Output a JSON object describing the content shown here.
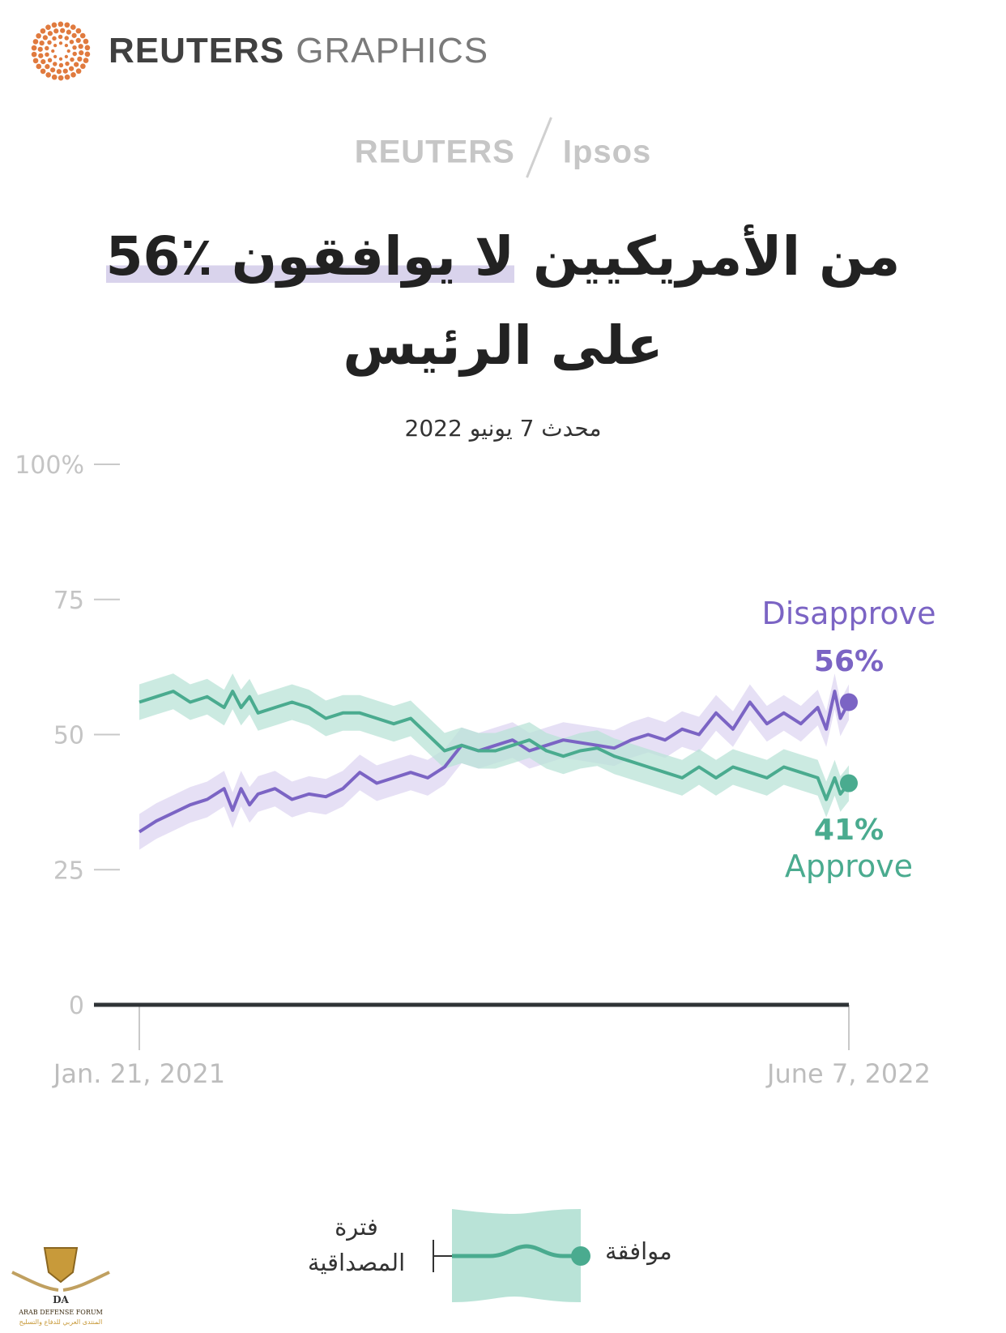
{
  "brand": {
    "name_bold": "REUTERS",
    "name_light": "GRAPHICS"
  },
  "partner": {
    "left": "REUTERS",
    "right": "Ipsos"
  },
  "header": {
    "title_line1_a": "من الأمريكيين ",
    "title_line1_highlight": "لا يوافقون ٪56",
    "title_line2": "على الرئيس",
    "subtitle": "محدث 7 يونيو 2022"
  },
  "colors": {
    "approve": "#4aab8f",
    "approve_band": "#b9e3d7",
    "disapprove": "#7b64c4",
    "disapprove_band": "#ddd6f1",
    "axis": "#2f3336",
    "tick": "#c9c9c9"
  },
  "legend": {
    "series_label": "موافقة",
    "band_label_1": "فترة",
    "band_label_2": "المصداقية"
  },
  "watermark": {
    "text_1": "ARAB DEFENSE FORUM",
    "text_2": "المنتدى العربي للدفاع والتسليح",
    "monogram": "DA"
  },
  "chart_data": {
    "type": "line",
    "ylim": [
      0,
      100
    ],
    "yticks": [
      0,
      25,
      50,
      75,
      100
    ],
    "ytick_labels": [
      "0",
      "25",
      "50",
      "75",
      "100%"
    ],
    "xticks": [
      0,
      502
    ],
    "xtick_labels": [
      "Jan. 21, 2021",
      "June 7, 2022"
    ],
    "x_start_label": "Jan. 21, 2021",
    "x_end_label": "June 7, 2022",
    "series": [
      {
        "name": "Disapprove",
        "end_label": "56%",
        "x": [
          0,
          12,
          24,
          36,
          48,
          60,
          66,
          72,
          78,
          84,
          96,
          108,
          120,
          132,
          144,
          156,
          168,
          180,
          192,
          204,
          216,
          228,
          240,
          252,
          264,
          276,
          288,
          300,
          312,
          324,
          336,
          348,
          360,
          372,
          384,
          396,
          408,
          420,
          432,
          444,
          456,
          468,
          480,
          486,
          492,
          496,
          502
        ],
        "values": [
          32,
          34,
          35.5,
          37,
          38,
          40,
          36,
          40,
          37,
          39,
          40,
          38,
          39,
          38.5,
          40,
          43,
          41,
          42,
          43,
          42,
          44,
          48,
          47,
          48,
          49,
          47,
          48,
          49,
          48.5,
          48,
          47.5,
          49,
          50,
          49,
          51,
          50,
          54,
          51,
          56,
          52,
          54,
          52,
          55,
          51,
          58,
          53,
          56
        ]
      },
      {
        "name": "Approve",
        "end_label": "41%",
        "x": [
          0,
          12,
          24,
          36,
          48,
          60,
          66,
          72,
          78,
          84,
          96,
          108,
          120,
          132,
          144,
          156,
          168,
          180,
          192,
          204,
          216,
          228,
          240,
          252,
          264,
          276,
          288,
          300,
          312,
          324,
          336,
          348,
          360,
          372,
          384,
          396,
          408,
          420,
          432,
          444,
          456,
          468,
          480,
          486,
          492,
          496,
          502
        ],
        "values": [
          56,
          57,
          58,
          56,
          57,
          55,
          58,
          55,
          57,
          54,
          55,
          56,
          55,
          53,
          54,
          54,
          53,
          52,
          53,
          50,
          47,
          48,
          47,
          47,
          48,
          49,
          47,
          46,
          47,
          47.5,
          46,
          45,
          44,
          43,
          42,
          44,
          42,
          44,
          43,
          42,
          44,
          43,
          42,
          38,
          42,
          39,
          41
        ]
      }
    ],
    "bands": [
      {
        "series": "Disapprove",
        "half_width": 3.3
      },
      {
        "series": "Approve",
        "half_width": 3.3
      }
    ]
  }
}
